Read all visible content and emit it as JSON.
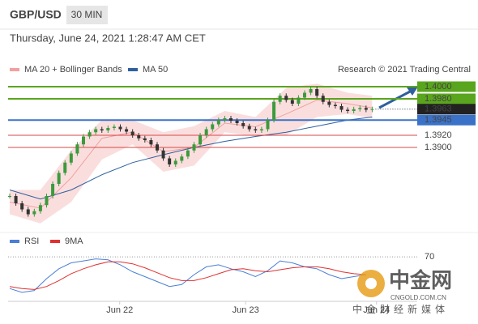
{
  "chart_data": {
    "type": "candlestick",
    "title": "GBP/USD",
    "timeframe": "30 MIN",
    "subtitle": "Thursday, June 24, 2021 1:28:47 AM CET",
    "credit": "Research © 2021 Trading Central",
    "xlim": [
      0,
      60
    ],
    "xticks": [
      {
        "value": 17.9,
        "label": "Jun 22"
      },
      {
        "value": 38.4,
        "label": "Jun 23"
      },
      {
        "value": 59.7,
        "label": "Jun 24"
      }
    ],
    "ylim": [
      1.3776,
      1.4016
    ],
    "x": [
      0,
      1,
      2,
      3,
      4,
      5,
      6,
      7,
      8,
      9,
      10,
      11,
      12,
      13,
      14,
      15,
      16,
      17,
      18,
      19,
      20,
      21,
      22,
      23,
      24,
      25,
      26,
      27,
      28,
      29,
      30,
      31,
      32,
      33,
      34,
      35,
      36,
      37,
      38,
      39,
      40,
      41,
      42,
      43,
      44,
      45,
      46,
      47,
      48,
      49,
      50,
      51,
      52,
      53,
      54,
      55,
      56,
      57,
      58,
      59
    ],
    "close": [
      1.382,
      1.3808,
      1.3798,
      1.379,
      1.3795,
      1.3805,
      1.382,
      1.384,
      1.3858,
      1.3875,
      1.389,
      1.3905,
      1.3918,
      1.3925,
      1.393,
      1.3928,
      1.3932,
      1.3934,
      1.393,
      1.3926,
      1.392,
      1.3915,
      1.3912,
      1.3905,
      1.3895,
      1.3882,
      1.3872,
      1.3878,
      1.3885,
      1.3895,
      1.3905,
      1.392,
      1.393,
      1.3938,
      1.3945,
      1.3948,
      1.3944,
      1.394,
      1.3935,
      1.393,
      1.3928,
      1.393,
      1.3945,
      1.3975,
      1.3985,
      1.3978,
      1.3972,
      1.3982,
      1.399,
      1.3996,
      1.3985,
      1.3975,
      1.397,
      1.3968,
      1.3962,
      1.396,
      1.3963,
      1.3965,
      1.3962,
      1.3963
    ],
    "up_color": "#3c9a3c",
    "down_color": "#333333",
    "series": [
      {
        "name": "MA 20 + Bollinger Bands",
        "color": "#f2a0a0",
        "x": [
          0,
          5,
          10,
          15,
          20,
          25,
          30,
          35,
          40,
          45,
          50,
          55,
          59
        ],
        "upper": [
          1.383,
          1.383,
          1.3895,
          1.3945,
          1.3945,
          1.3925,
          1.3935,
          1.396,
          1.395,
          1.3998,
          1.4005,
          1.399,
          1.3985
        ],
        "lower": [
          1.379,
          1.3775,
          1.381,
          1.388,
          1.3905,
          1.386,
          1.387,
          1.3925,
          1.3918,
          1.392,
          1.395,
          1.3955,
          1.3948
        ],
        "values": [
          1.381,
          1.38,
          1.385,
          1.3915,
          1.3925,
          1.3893,
          1.39,
          1.394,
          1.3934,
          1.3955,
          1.3978,
          1.3972,
          1.3965
        ]
      },
      {
        "name": "MA 50",
        "color": "#2f5f9e",
        "x": [
          0,
          5,
          10,
          15,
          20,
          25,
          30,
          35,
          40,
          45,
          50,
          55,
          59
        ],
        "values": [
          1.383,
          1.3815,
          1.383,
          1.3855,
          1.3875,
          1.3888,
          1.39,
          1.391,
          1.3918,
          1.3925,
          1.3935,
          1.3945,
          1.395
        ]
      }
    ],
    "levels": [
      {
        "value": 1.4,
        "label": "1.4000",
        "color": "#5aa51e",
        "boxed": true
      },
      {
        "value": 1.398,
        "label": "1.3980",
        "color": "#5aa51e",
        "boxed": true
      },
      {
        "value": 1.3963,
        "label": "1.3963",
        "color": "#222222",
        "boxed": true,
        "current": true
      },
      {
        "value": 1.3945,
        "label": "1.3945",
        "color": "#3a72c8",
        "boxed": true
      },
      {
        "value": 1.392,
        "label": "1.3920",
        "color": "#d84848",
        "boxed": false
      },
      {
        "value": 1.39,
        "label": "1.3900",
        "color": "#d84848",
        "boxed": false
      }
    ],
    "rsi": {
      "ylim": [
        25,
        80
      ],
      "yticks": [
        70
      ],
      "series": [
        {
          "name": "RSI",
          "color": "#4a7fd4",
          "x": [
            0,
            2,
            4,
            6,
            8,
            10,
            12,
            14,
            16,
            18,
            20,
            22,
            24,
            26,
            28,
            30,
            32,
            34,
            36,
            38,
            40,
            42,
            44,
            46,
            48,
            50,
            52,
            54,
            56,
            58
          ],
          "values": [
            38,
            34,
            36,
            48,
            58,
            64,
            66,
            68,
            67,
            62,
            55,
            50,
            45,
            40,
            42,
            52,
            60,
            62,
            58,
            55,
            50,
            56,
            66,
            64,
            60,
            58,
            52,
            48,
            50,
            52
          ]
        },
        {
          "name": "9MA",
          "color": "#e03030",
          "x": [
            0,
            2,
            4,
            6,
            8,
            10,
            12,
            14,
            16,
            18,
            20,
            22,
            24,
            26,
            28,
            30,
            32,
            34,
            36,
            38,
            40,
            42,
            44,
            46,
            48,
            50,
            52,
            54,
            56,
            58
          ],
          "values": [
            40,
            38,
            37,
            40,
            46,
            53,
            58,
            62,
            65,
            65,
            63,
            59,
            54,
            49,
            46,
            46,
            49,
            53,
            57,
            58,
            56,
            55,
            57,
            59,
            60,
            60,
            58,
            55,
            53,
            52
          ]
        }
      ]
    },
    "watermark": {
      "name": "中金网",
      "site": "CNGOLD.COM.CN",
      "tagline": "中金财经新媒体"
    }
  }
}
